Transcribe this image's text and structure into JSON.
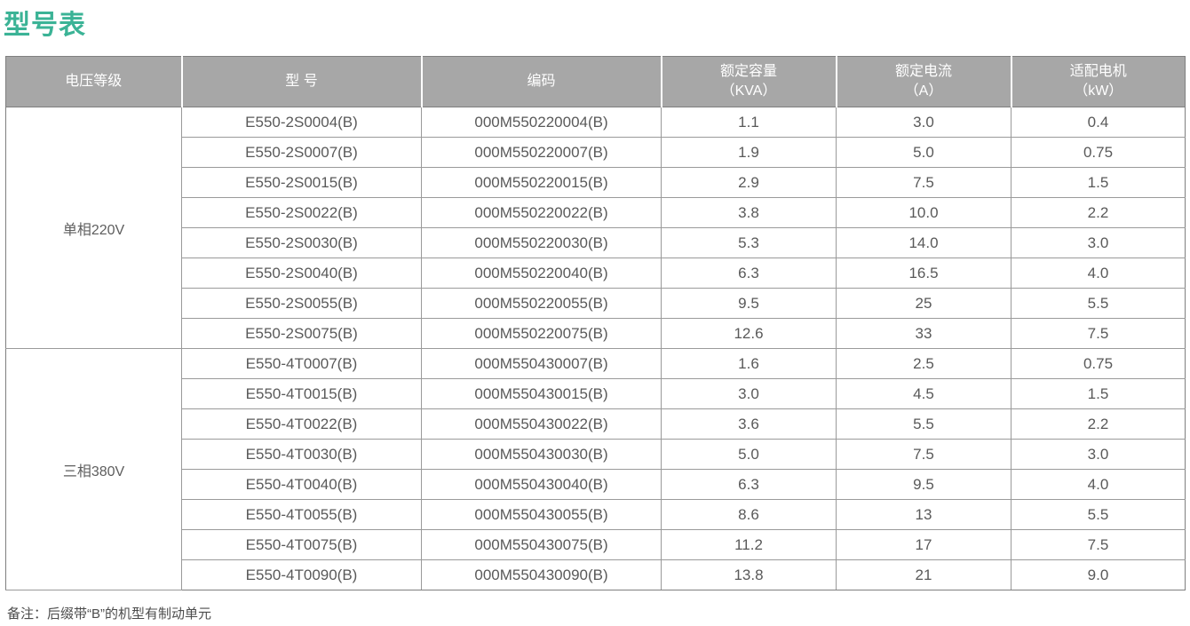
{
  "page": {
    "title": "型号表",
    "note": "备注：后缀带“B”的机型有制动单元",
    "accent_color": "#3bb396"
  },
  "table": {
    "colors": {
      "header_bg": "#a7a7a7",
      "header_text": "#ffffff",
      "body_text": "#595959",
      "border": "#9a9a9a"
    },
    "headers": [
      {
        "label": "电压等级",
        "sub": ""
      },
      {
        "label": "型 号",
        "sub": ""
      },
      {
        "label": "编码",
        "sub": ""
      },
      {
        "label": "额定容量",
        "sub": "（KVA）"
      },
      {
        "label": "额定电流",
        "sub": "（A）"
      },
      {
        "label": "适配电机",
        "sub": "（kW）"
      }
    ],
    "groups": [
      {
        "voltage": "单相220V",
        "rows": [
          [
            "E550-2S0004(B)",
            "000M550220004(B)",
            "1.1",
            "3.0",
            "0.4"
          ],
          [
            "E550-2S0007(B)",
            "000M550220007(B)",
            "1.9",
            "5.0",
            "0.75"
          ],
          [
            "E550-2S0015(B)",
            "000M550220015(B)",
            "2.9",
            "7.5",
            "1.5"
          ],
          [
            "E550-2S0022(B)",
            "000M550220022(B)",
            "3.8",
            "10.0",
            "2.2"
          ],
          [
            "E550-2S0030(B)",
            "000M550220030(B)",
            "5.3",
            "14.0",
            "3.0"
          ],
          [
            "E550-2S0040(B)",
            "000M550220040(B)",
            "6.3",
            "16.5",
            "4.0"
          ],
          [
            "E550-2S0055(B)",
            "000M550220055(B)",
            "9.5",
            "25",
            "5.5"
          ],
          [
            "E550-2S0075(B)",
            "000M550220075(B)",
            "12.6",
            "33",
            "7.5"
          ]
        ]
      },
      {
        "voltage": "三相380V",
        "rows": [
          [
            "E550-4T0007(B)",
            "000M550430007(B)",
            "1.6",
            "2.5",
            "0.75"
          ],
          [
            "E550-4T0015(B)",
            "000M550430015(B)",
            "3.0",
            "4.5",
            "1.5"
          ],
          [
            "E550-4T0022(B)",
            "000M550430022(B)",
            "3.6",
            "5.5",
            "2.2"
          ],
          [
            "E550-4T0030(B)",
            "000M550430030(B)",
            "5.0",
            "7.5",
            "3.0"
          ],
          [
            "E550-4T0040(B)",
            "000M550430040(B)",
            "6.3",
            "9.5",
            "4.0"
          ],
          [
            "E550-4T0055(B)",
            "000M550430055(B)",
            "8.6",
            "13",
            "5.5"
          ],
          [
            "E550-4T0075(B)",
            "000M550430075(B)",
            "11.2",
            "17",
            "7.5"
          ],
          [
            "E550-4T0090(B)",
            "000M550430090(B)",
            "13.8",
            "21",
            "9.0"
          ]
        ]
      }
    ]
  }
}
